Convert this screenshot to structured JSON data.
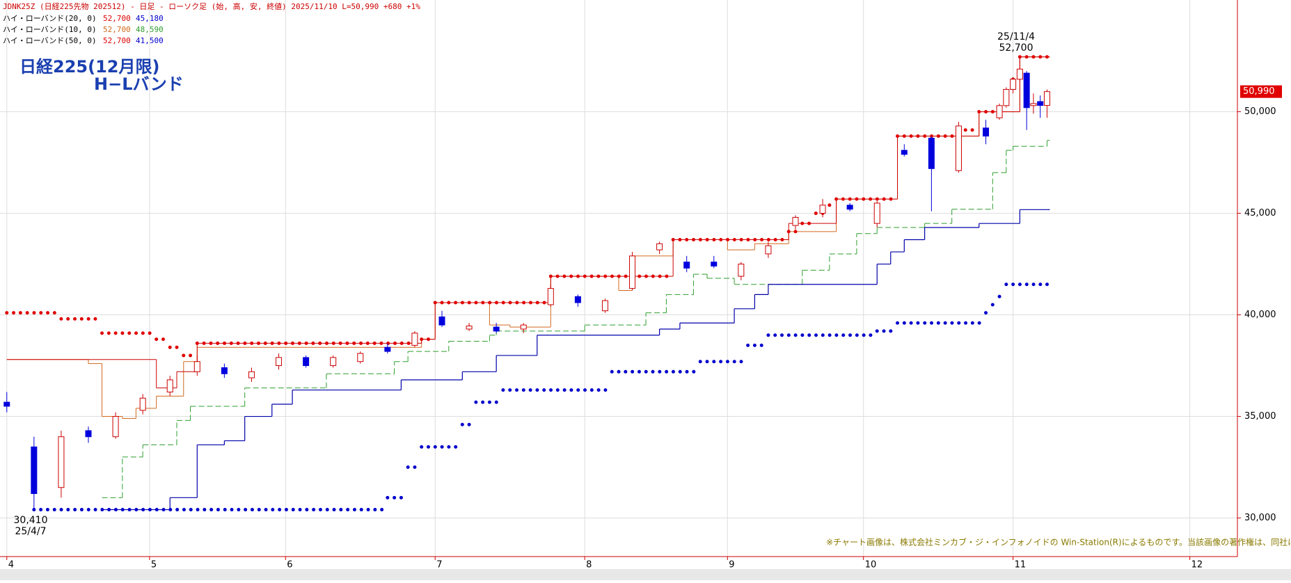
{
  "chart_data": {
    "type": "candlestick",
    "header": "JDNK25Z (日経225先物 202512) - 日足 - ローソク足 (始, 高, 安, 終値)  2025/11/10 L=50,990 +680  +1%",
    "legend": [
      {
        "name": "ハイ・ローバンド(20, 0)",
        "high": "52,700",
        "low": "45,180",
        "high_color": "#e00000",
        "low_color": "#0000cc"
      },
      {
        "name": "ハイ・ローバンド(10, 0)",
        "high": "52,700",
        "low": "48,590",
        "high_color": "#d2691e",
        "low_color": "#2e9e2e"
      },
      {
        "name": "ハイ・ローバンド(50, 0)",
        "high": "52,700",
        "low": "41,500",
        "high_color": "#e00000",
        "low_color": "#0000cc"
      }
    ],
    "title": [
      "日経225(12月限)",
      "H−Lバンド"
    ],
    "annotations": {
      "high_date": "25/11/4",
      "high_value": "52,700",
      "low_value": "30,410",
      "low_date": "25/4/7",
      "last_price": "50,990",
      "note": "※チャート画像は、株式会社ミンカブ・ジ・インフォノイドの Win-Station(R)によるものです。当該画像の著作権は、同社に帰属します。"
    },
    "xlim": [
      -1,
      181
    ],
    "xticks": [
      {
        "value": 0,
        "label": "4"
      },
      {
        "value": 21,
        "label": "5"
      },
      {
        "value": 41,
        "label": "6"
      },
      {
        "value": 63,
        "label": "7"
      },
      {
        "value": 85,
        "label": "8"
      },
      {
        "value": 106,
        "label": "9"
      },
      {
        "value": 126,
        "label": "10"
      },
      {
        "value": 148,
        "label": "11"
      },
      {
        "value": 174,
        "label": "12"
      }
    ],
    "ylim": [
      28100,
      55500
    ],
    "yticks": [
      {
        "value": 30000,
        "label": "30,000"
      },
      {
        "value": 35000,
        "label": "35,000"
      },
      {
        "value": 40000,
        "label": "40,000"
      },
      {
        "value": 45000,
        "label": "45,000"
      },
      {
        "value": 50000,
        "label": "50,000"
      }
    ],
    "grid": true,
    "up_color": "#cc0000",
    "down_color": "#0000dd",
    "candles": {
      "x": [
        0,
        4,
        8,
        12,
        16,
        20,
        24,
        28,
        32,
        36,
        40,
        44,
        48,
        52,
        56,
        60,
        64,
        68,
        72,
        76,
        80,
        84,
        88,
        92,
        96,
        100,
        104,
        108,
        112,
        116,
        120,
        124,
        128,
        132,
        136,
        140,
        144,
        146,
        147,
        148,
        149,
        150,
        151,
        152,
        153
      ],
      "open": [
        35700,
        33500,
        31500,
        34300,
        34000,
        35300,
        36200,
        37200,
        37400,
        36900,
        37500,
        37900,
        37500,
        37700,
        38400,
        38500,
        39900,
        39300,
        39400,
        39300,
        40500,
        40900,
        40200,
        41300,
        43200,
        42600,
        42600,
        41900,
        43000,
        44400,
        45000,
        45400,
        44500,
        48100,
        48700,
        47100,
        49200,
        49700,
        50300,
        51100,
        51600,
        51900,
        50300,
        50500,
        50310
      ],
      "high": [
        36200,
        34000,
        34300,
        34500,
        35200,
        36100,
        37000,
        38000,
        37600,
        37400,
        38100,
        38000,
        38000,
        38200,
        38600,
        39200,
        40200,
        39600,
        39600,
        39600,
        41500,
        41000,
        40800,
        43100,
        43600,
        42900,
        42900,
        42600,
        43600,
        44900,
        45700,
        45500,
        45600,
        48400,
        48800,
        49500,
        49600,
        50400,
        51200,
        51700,
        52700,
        52000,
        50900,
        50800,
        51100
      ],
      "low": [
        35200,
        30410,
        31000,
        33700,
        33900,
        35100,
        36000,
        37000,
        36900,
        36700,
        37300,
        37400,
        37400,
        37600,
        38100,
        38400,
        39400,
        39200,
        39100,
        39100,
        40400,
        40400,
        40100,
        41200,
        43000,
        42100,
        42300,
        41700,
        42800,
        44200,
        44800,
        45100,
        44300,
        47800,
        45100,
        47000,
        48400,
        49600,
        50200,
        50900,
        51500,
        49100,
        49900,
        49700,
        49700
      ],
      "close": [
        35500,
        31200,
        34000,
        34000,
        35000,
        35900,
        36800,
        37700,
        37100,
        37200,
        37900,
        37500,
        37900,
        38100,
        38200,
        39100,
        39500,
        39450,
        39200,
        39500,
        41300,
        40600,
        40700,
        42900,
        43500,
        42300,
        42400,
        42500,
        43400,
        44800,
        45400,
        45200,
        45500,
        47900,
        47200,
        49300,
        48800,
        50300,
        51100,
        51600,
        52100,
        50200,
        50400,
        50310,
        50990
      ]
    },
    "bands": [
      {
        "color": "#2e9e2e",
        "style": "dashed",
        "x": [
          14,
          17,
          20,
          25,
          27,
          35,
          47,
          57,
          59,
          65,
          71,
          72,
          85,
          94,
          97,
          101,
          103,
          107,
          117,
          121,
          125,
          128,
          135,
          139,
          145,
          147,
          148,
          153
        ],
        "values": [
          31000,
          33000,
          33600,
          34800,
          35500,
          36400,
          37100,
          37700,
          38200,
          38700,
          39000,
          39200,
          39500,
          40100,
          41000,
          42000,
          41800,
          41500,
          42200,
          43000,
          44000,
          44300,
          44500,
          45200,
          47000,
          48100,
          48300,
          48590
        ]
      },
      {
        "color": "#0000aa",
        "style": "solid",
        "x": [
          14,
          24,
          28,
          32,
          35,
          39,
          42,
          58,
          67,
          72,
          78,
          96,
          99,
          107,
          110,
          112,
          128,
          130,
          132,
          135,
          143,
          149,
          153
        ],
        "values": [
          30410,
          31000,
          33600,
          33800,
          35000,
          35600,
          36300,
          36800,
          37200,
          38000,
          39000,
          39300,
          39600,
          40300,
          41000,
          41500,
          42500,
          43100,
          43700,
          44300,
          44500,
          45180,
          45180
        ]
      },
      {
        "color": "#d2691e",
        "style": "thin",
        "x": [
          0,
          12,
          14,
          17,
          19,
          22,
          26,
          28,
          61,
          63,
          71,
          74,
          80,
          90,
          92,
          98,
          106,
          110,
          115,
          122,
          131,
          143,
          149,
          153
        ],
        "values": [
          37800,
          37600,
          35000,
          34900,
          35400,
          36000,
          37700,
          38400,
          38800,
          40600,
          39500,
          39400,
          41900,
          41200,
          42900,
          43700,
          43200,
          43500,
          44100,
          45700,
          48800,
          50000,
          52700,
          52700
        ]
      },
      {
        "color": "#cc0000",
        "style": "thin",
        "x": [
          0,
          19,
          22,
          25,
          28,
          61,
          63,
          80,
          98,
          115,
          122,
          131,
          143,
          149,
          153
        ],
        "values": [
          37800,
          37800,
          36400,
          37200,
          38600,
          38800,
          40600,
          41900,
          43700,
          44500,
          45700,
          48800,
          50000,
          52700,
          52700
        ]
      },
      {
        "color": "#0000cc",
        "style": "dots",
        "x": [
          4,
          56,
          59,
          61,
          67,
          69,
          73,
          89,
          102,
          109,
          112,
          128,
          131,
          144,
          145,
          146,
          147,
          153
        ],
        "values": [
          30410,
          31000,
          32500,
          33500,
          34600,
          35700,
          36300,
          37200,
          37700,
          38500,
          39000,
          39200,
          39600,
          40100,
          40500,
          40900,
          41500,
          41500
        ]
      },
      {
        "color": "#e00000",
        "style": "dots",
        "x": [
          0,
          8,
          14,
          22,
          24,
          26,
          28,
          61,
          63,
          80,
          98,
          115,
          117,
          119,
          121,
          122,
          131,
          140,
          143,
          147,
          148,
          149,
          153
        ],
        "values": [
          40100,
          39800,
          39100,
          38800,
          38400,
          38000,
          38600,
          38800,
          40600,
          41900,
          43700,
          44100,
          44500,
          45000,
          45400,
          45700,
          48800,
          49100,
          50000,
          50700,
          51600,
          52700,
          52700
        ]
      }
    ]
  }
}
